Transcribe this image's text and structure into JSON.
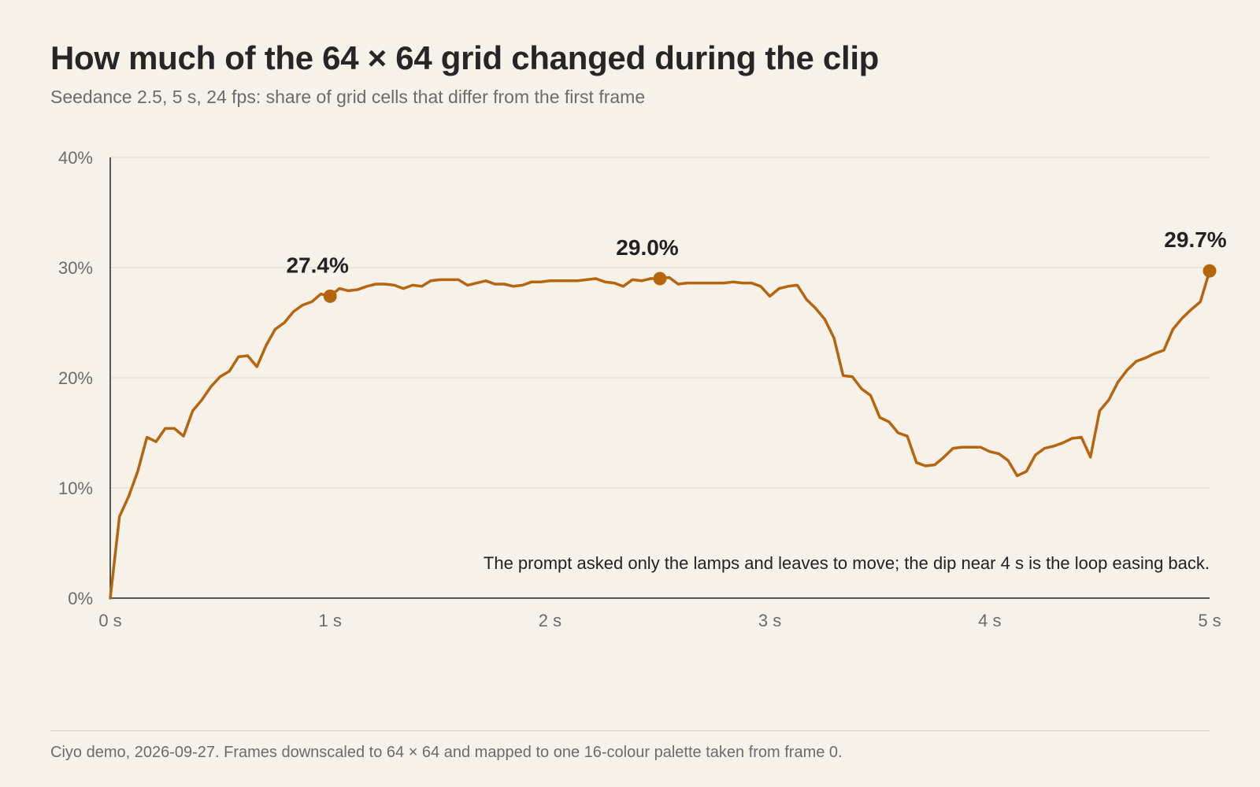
{
  "header": {
    "title": "How much of the 64 × 64 grid changed during the clip",
    "subtitle": "Seedance 2.5, 5 s, 24 fps: share of grid cells that differ from the first frame"
  },
  "chart_data": {
    "type": "line",
    "x_unit": "s",
    "xlim": [
      0,
      5
    ],
    "ylim": [
      0,
      40
    ],
    "y_unit": "%",
    "x_ticks": [
      0,
      1,
      2,
      3,
      4,
      5
    ],
    "x_tick_labels": [
      "0 s",
      "1 s",
      "2 s",
      "3 s",
      "4 s",
      "5 s"
    ],
    "y_ticks": [
      0,
      10,
      20,
      30,
      40
    ],
    "y_tick_labels": [
      "0%",
      "10%",
      "20%",
      "30%",
      "40%"
    ],
    "grid": true,
    "series": [
      {
        "color": "#b5650d",
        "x": [
          0,
          0.042,
          0.083,
          0.125,
          0.167,
          0.208,
          0.25,
          0.292,
          0.333,
          0.375,
          0.417,
          0.458,
          0.5,
          0.542,
          0.583,
          0.625,
          0.667,
          0.708,
          0.75,
          0.792,
          0.833,
          0.875,
          0.917,
          0.958,
          1.0,
          1.042,
          1.083,
          1.125,
          1.167,
          1.208,
          1.25,
          1.292,
          1.333,
          1.375,
          1.417,
          1.458,
          1.5,
          1.542,
          1.583,
          1.625,
          1.667,
          1.708,
          1.75,
          1.792,
          1.833,
          1.875,
          1.917,
          1.958,
          2.0,
          2.042,
          2.083,
          2.125,
          2.167,
          2.208,
          2.25,
          2.292,
          2.333,
          2.375,
          2.417,
          2.458,
          2.5,
          2.542,
          2.583,
          2.625,
          2.667,
          2.708,
          2.75,
          2.792,
          2.833,
          2.875,
          2.917,
          2.958,
          3.0,
          3.042,
          3.083,
          3.125,
          3.167,
          3.208,
          3.25,
          3.292,
          3.333,
          3.375,
          3.417,
          3.458,
          3.5,
          3.542,
          3.583,
          3.625,
          3.667,
          3.708,
          3.75,
          3.792,
          3.833,
          3.875,
          3.917,
          3.958,
          4.0,
          4.042,
          4.083,
          4.125,
          4.167,
          4.208,
          4.25,
          4.292,
          4.333,
          4.375,
          4.417,
          4.458,
          4.5,
          4.542,
          4.583,
          4.625,
          4.667,
          4.708,
          4.75,
          4.792,
          4.833,
          4.875,
          4.917,
          4.958,
          5.0
        ],
        "values": [
          0,
          7.4,
          9.2,
          11.5,
          14.6,
          14.2,
          15.4,
          15.4,
          14.7,
          17.0,
          18.0,
          19.2,
          20.1,
          20.6,
          21.9,
          22.0,
          21.0,
          22.9,
          24.4,
          25.0,
          26.0,
          26.6,
          26.9,
          27.6,
          27.4,
          28.1,
          27.9,
          28.0,
          28.3,
          28.5,
          28.5,
          28.4,
          28.1,
          28.4,
          28.3,
          28.8,
          28.9,
          28.9,
          28.9,
          28.4,
          28.6,
          28.8,
          28.5,
          28.5,
          28.3,
          28.4,
          28.7,
          28.7,
          28.8,
          28.8,
          28.8,
          28.8,
          28.9,
          29.0,
          28.7,
          28.6,
          28.3,
          28.9,
          28.8,
          29.0,
          29.0,
          29.1,
          28.5,
          28.6,
          28.6,
          28.6,
          28.6,
          28.6,
          28.7,
          28.6,
          28.6,
          28.3,
          27.4,
          28.1,
          28.3,
          28.4,
          27.1,
          26.3,
          25.3,
          23.6,
          20.2,
          20.1,
          19.0,
          18.4,
          16.4,
          16.0,
          15.0,
          14.7,
          12.3,
          12.0,
          12.1,
          12.8,
          13.6,
          13.7,
          13.7,
          13.7,
          13.3,
          13.1,
          12.5,
          11.1,
          11.5,
          13.0,
          13.6,
          13.8,
          14.1,
          14.5,
          14.6,
          12.8,
          17.0,
          18.0,
          19.6,
          20.7,
          21.5,
          21.8,
          22.2,
          22.5,
          24.4,
          25.4,
          26.2,
          26.9,
          29.7
        ]
      }
    ],
    "highlights": [
      {
        "x": 1.0,
        "value": 27.4,
        "label": "27.4%"
      },
      {
        "x": 2.5,
        "value": 29.0,
        "label": "29.0%"
      },
      {
        "x": 5.0,
        "value": 29.7,
        "label": "29.7%"
      }
    ],
    "annotation": "The prompt asked only the lamps and leaves to move; the dip near 4 s is the loop easing back."
  },
  "footer": {
    "note": "Ciyo demo, 2026-09-27. Frames downscaled to 64 × 64 and mapped to one 16-colour palette taken from frame 0."
  }
}
